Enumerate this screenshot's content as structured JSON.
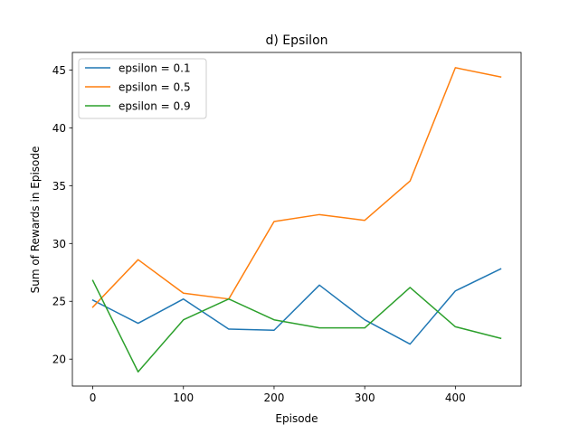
{
  "chart_data": {
    "type": "line",
    "title": "d) Epsilon",
    "xlabel": "Episode",
    "ylabel": "Sum of Rewards in Episode",
    "x": [
      0,
      50,
      100,
      150,
      200,
      250,
      300,
      350,
      400,
      450
    ],
    "xlim": [
      -22.5,
      472.5
    ],
    "ylim": [
      17.67,
      46.52
    ],
    "xticks": [
      0,
      100,
      200,
      300,
      400
    ],
    "yticks": [
      20,
      25,
      30,
      35,
      40,
      45
    ],
    "grid": false,
    "legend_position": "top-left",
    "series": [
      {
        "name": "epsilon = 0.1",
        "color": "#1f77b4",
        "values": [
          25.1,
          23.1,
          25.2,
          22.6,
          22.5,
          26.4,
          23.4,
          21.3,
          25.9,
          27.8
        ]
      },
      {
        "name": "epsilon = 0.5",
        "color": "#ff7f0e",
        "values": [
          24.5,
          28.6,
          25.7,
          25.2,
          31.9,
          32.5,
          32.0,
          35.4,
          45.2,
          44.4
        ]
      },
      {
        "name": "epsilon = 0.9",
        "color": "#2ca02c",
        "values": [
          26.8,
          18.9,
          23.4,
          25.2,
          23.4,
          22.7,
          22.7,
          26.2,
          22.8,
          21.8
        ]
      }
    ]
  }
}
